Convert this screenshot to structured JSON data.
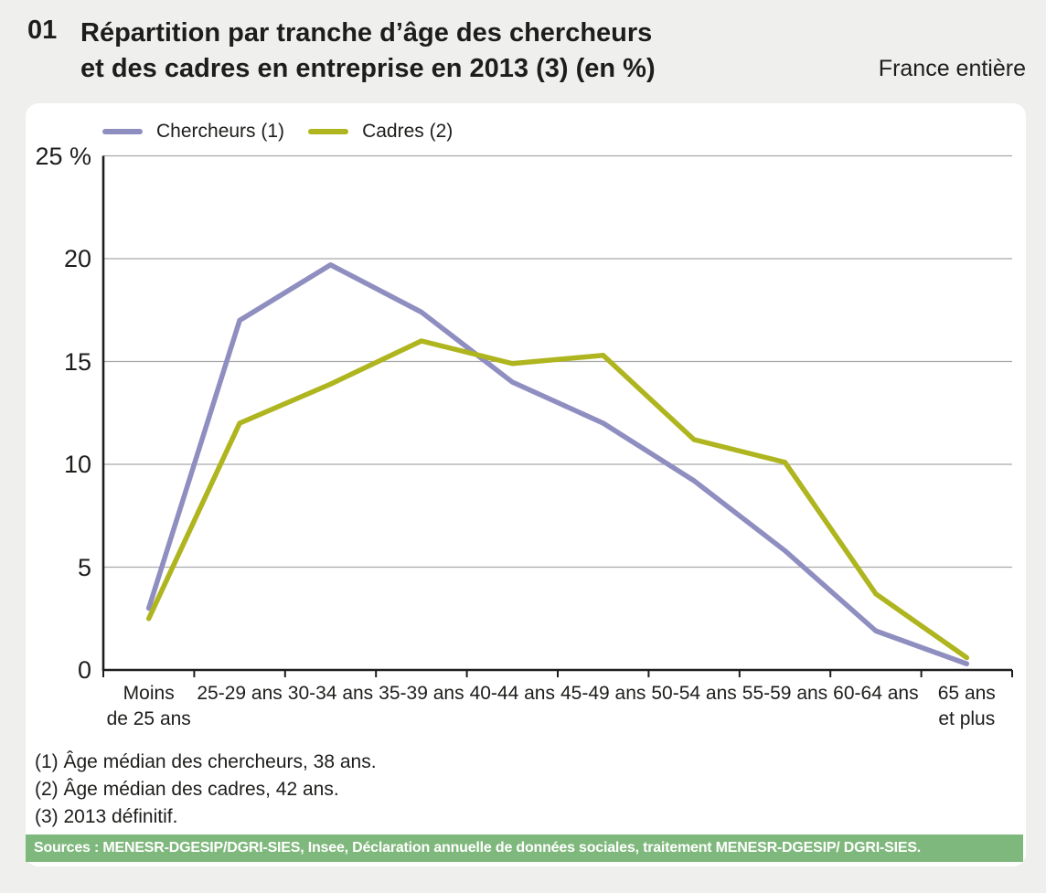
{
  "header": {
    "number": "01",
    "title_line1": "Répartition par tranche d’âge des chercheurs",
    "title_line2": "et des cadres en entreprise en 2013 (3) (en %)",
    "region": "France entière"
  },
  "colors": {
    "chercheurs_line": "#8f8ec0",
    "cadres_line": "#afb51e",
    "source_bar_bg": "#7fb87c",
    "gridline": "#a9a9a9",
    "axis": "#1d1d1b",
    "card_bg": "#ffffff",
    "page_bg": "#efefee"
  },
  "chart_data": {
    "type": "line",
    "title": "Répartition par tranche d’âge des chercheurs et des cadres en entreprise en 2013 (3) (en %)",
    "subtitle": "France entière",
    "xlabel": "",
    "ylabel": "%",
    "ylim": [
      0,
      25
    ],
    "grid": true,
    "legend_position": "top-left",
    "y_ticks": [
      {
        "value": 0,
        "label": "0"
      },
      {
        "value": 5,
        "label": "5"
      },
      {
        "value": 10,
        "label": "10"
      },
      {
        "value": 15,
        "label": "15"
      },
      {
        "value": 20,
        "label": "20"
      },
      {
        "value": 25,
        "label": "25 %"
      }
    ],
    "categories": [
      "Moins\nde 25 ans",
      "25-29 ans",
      "30-34 ans",
      "35-39 ans",
      "40-44 ans",
      "45-49 ans",
      "50-54 ans",
      "55-59 ans",
      "60-64 ans",
      "65 ans\net plus"
    ],
    "series": [
      {
        "name": "Chercheurs (1)",
        "color": "#8f8ec0",
        "values": [
          3.0,
          17.0,
          19.7,
          17.4,
          14.0,
          12.0,
          9.2,
          5.8,
          1.9,
          0.3
        ]
      },
      {
        "name": "Cadres (2)",
        "color": "#afb51e",
        "values": [
          2.5,
          12.0,
          13.9,
          16.0,
          14.9,
          15.3,
          11.2,
          10.1,
          3.7,
          0.6
        ]
      }
    ]
  },
  "footnotes": [
    "(1) Âge médian des chercheurs, 38 ans.",
    "(2) Âge médian des cadres, 42 ans.",
    "(3) 2013 définitif."
  ],
  "source": {
    "text": "Sources : MENESR-DGESIP/DGRI-SIES, Insee, Déclaration annuelle de données sociales, traitement MENESR-DGESIP/ DGRI-SIES."
  }
}
